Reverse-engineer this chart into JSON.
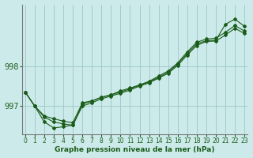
{
  "xlabel": "Graphe pression niveau de la mer (hPa)",
  "background_color": "#cdeaea",
  "grid_color": "#a0cccc",
  "line_color": "#1a5c1a",
  "x_ticks": [
    0,
    1,
    2,
    3,
    4,
    5,
    6,
    7,
    8,
    9,
    10,
    11,
    12,
    13,
    14,
    15,
    16,
    17,
    18,
    19,
    20,
    21,
    22,
    23
  ],
  "y_ticks": [
    997,
    998
  ],
  "ylim": [
    996.3,
    999.55
  ],
  "xlim": [
    -0.3,
    23.3
  ],
  "series1": [
    997.35,
    997.0,
    996.75,
    996.68,
    996.62,
    996.58,
    997.08,
    997.13,
    997.22,
    997.28,
    997.35,
    997.43,
    997.52,
    997.6,
    997.72,
    997.85,
    998.05,
    998.32,
    998.56,
    998.64,
    998.65,
    999.05,
    999.18,
    999.0
  ],
  "series2": [
    997.35,
    997.0,
    996.72,
    996.6,
    996.55,
    996.52,
    997.05,
    997.12,
    997.22,
    997.28,
    997.38,
    997.45,
    997.53,
    997.62,
    997.75,
    997.88,
    998.08,
    998.36,
    998.6,
    998.68,
    998.7,
    998.85,
    999.02,
    998.88
  ],
  "series3": [
    997.35,
    997.0,
    996.6,
    996.45,
    996.48,
    996.52,
    997.0,
    997.08,
    997.18,
    997.25,
    997.32,
    997.4,
    997.5,
    997.58,
    997.7,
    997.82,
    998.02,
    998.28,
    998.52,
    998.62,
    998.63,
    998.78,
    998.95,
    998.82
  ]
}
